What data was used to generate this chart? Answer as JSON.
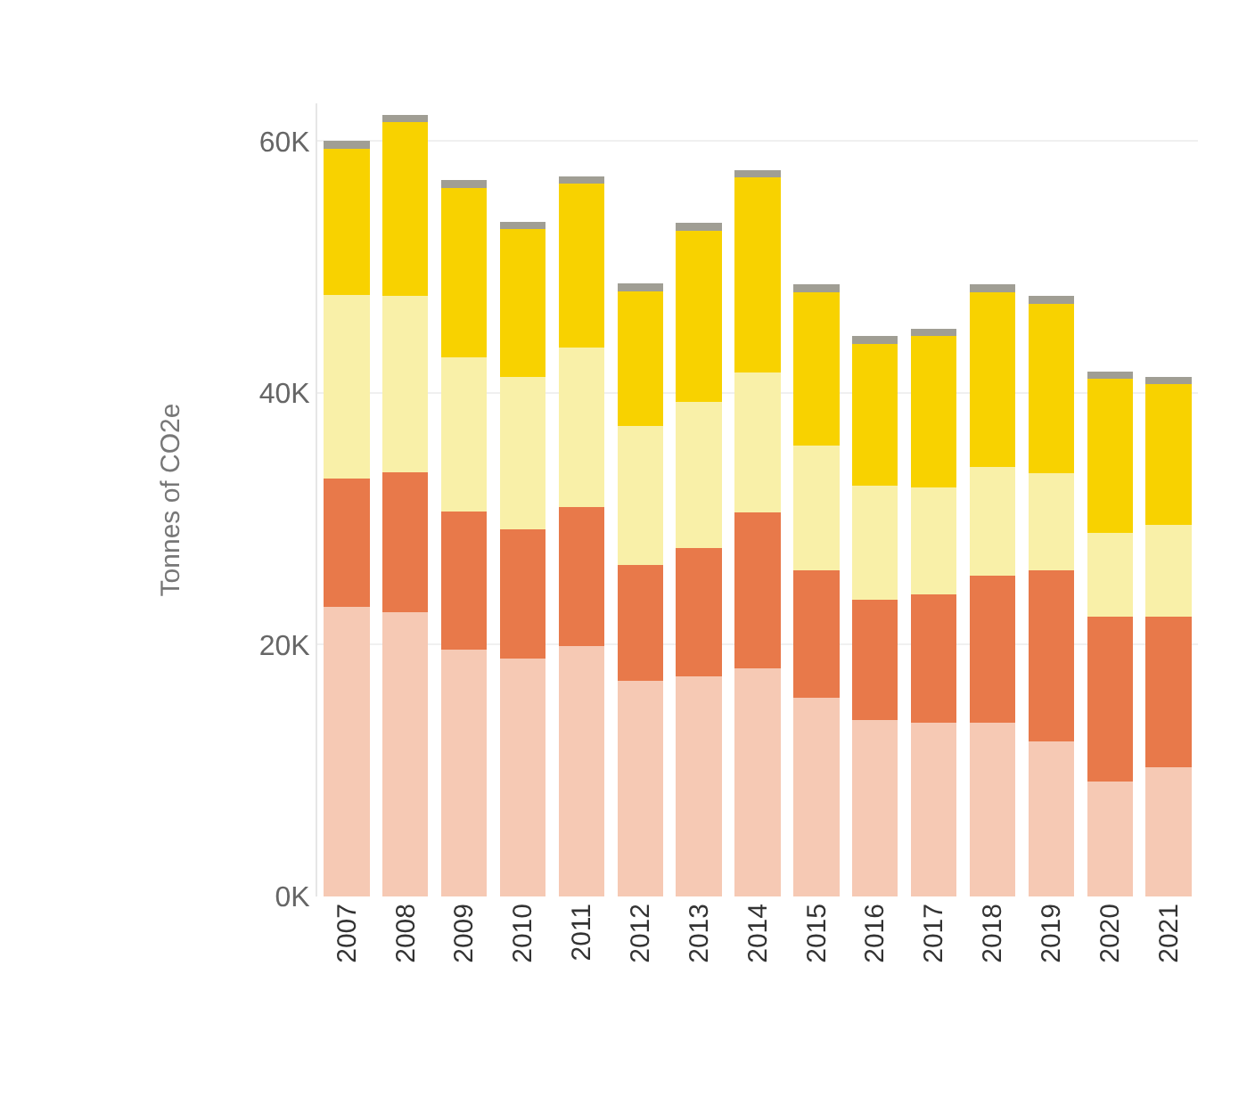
{
  "chart_data": {
    "type": "bar",
    "stacked": true,
    "ylabel": "Tonnes of CO2e",
    "categories": [
      "2007",
      "2008",
      "2009",
      "2010",
      "2011",
      "2012",
      "2013",
      "2014",
      "2015",
      "2016",
      "2017",
      "2018",
      "2019",
      "2020",
      "2021"
    ],
    "series": [
      {
        "color": "#f6c9b4",
        "values": [
          23.0,
          22.6,
          19.6,
          18.9,
          19.9,
          17.1,
          17.5,
          18.1,
          15.8,
          14.0,
          13.8,
          13.8,
          12.3,
          9.1,
          10.3
        ]
      },
      {
        "color": "#e8794a",
        "values": [
          10.2,
          11.1,
          11.0,
          10.3,
          11.0,
          9.2,
          10.2,
          12.4,
          10.1,
          9.6,
          10.2,
          11.7,
          13.6,
          13.1,
          11.9
        ]
      },
      {
        "color": "#f9f0a8",
        "values": [
          14.6,
          14.0,
          12.2,
          12.1,
          12.7,
          11.1,
          11.6,
          11.1,
          9.9,
          9.0,
          8.5,
          8.6,
          7.7,
          6.7,
          7.3
        ]
      },
      {
        "color": "#f8d200",
        "values": [
          11.6,
          13.8,
          13.5,
          11.7,
          13.0,
          10.7,
          13.6,
          15.5,
          12.2,
          11.3,
          12.0,
          13.9,
          13.5,
          12.2,
          11.2
        ]
      },
      {
        "color": "#a09e94",
        "values": [
          0.6,
          0.6,
          0.6,
          0.6,
          0.6,
          0.6,
          0.6,
          0.6,
          0.6,
          0.6,
          0.6,
          0.6,
          0.6,
          0.6,
          0.6
        ]
      }
    ],
    "ylim": [
      0,
      63
    ],
    "yticks": [
      {
        "value": 0,
        "label": "0K"
      },
      {
        "value": 20,
        "label": "20K"
      },
      {
        "value": 40,
        "label": "40K"
      },
      {
        "value": 60,
        "label": "60K"
      }
    ],
    "grid": "y",
    "legend": false
  }
}
